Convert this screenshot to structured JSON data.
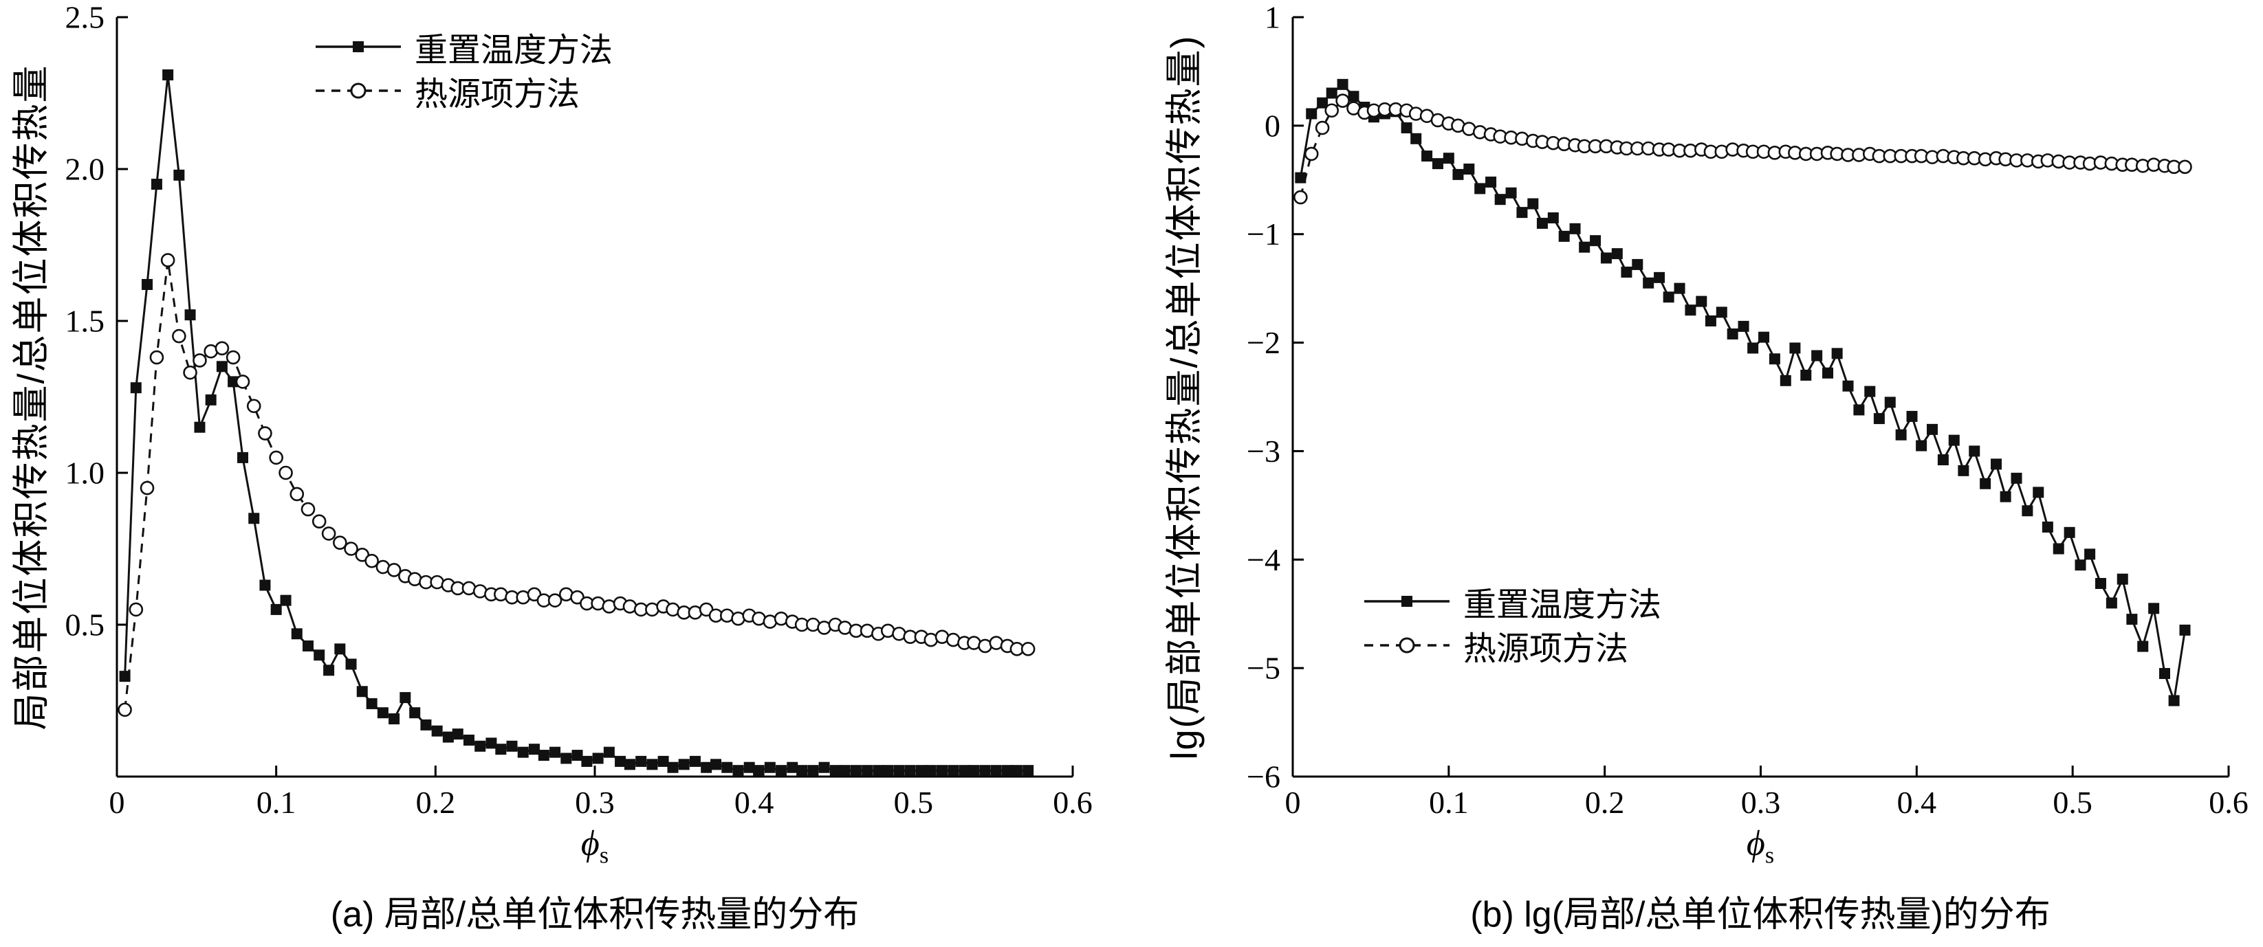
{
  "chart_data": [
    {
      "id": "a",
      "type": "line",
      "caption": "(a) 局部/总单位体积传热量的分布",
      "ylabel": "局部单位体积传热量/总单位体积传热量",
      "xlabel": "ϕ",
      "xlabel_sub": "s",
      "xlim": [
        0,
        0.6
      ],
      "ylim": [
        0,
        2.5
      ],
      "grid": false,
      "legend_position": "top-right-inside",
      "xticks": {
        "values": [
          0,
          0.1,
          0.2,
          0.3,
          0.4,
          0.5,
          0.6
        ],
        "labels": [
          "0",
          "0.1",
          "0.2",
          "0.3",
          "0.4",
          "0.5",
          "0.6"
        ]
      },
      "yticks": {
        "values": [
          0.5,
          1.0,
          1.5,
          2.0,
          2.5
        ],
        "labels": [
          "0.5",
          "1.0",
          "1.5",
          "2.0",
          "2.5"
        ]
      },
      "x": [
        0.005,
        0.012,
        0.019,
        0.025,
        0.032,
        0.039,
        0.046,
        0.052,
        0.059,
        0.066,
        0.073,
        0.079,
        0.086,
        0.093,
        0.1,
        0.106,
        0.113,
        0.12,
        0.127,
        0.133,
        0.14,
        0.147,
        0.154,
        0.16,
        0.167,
        0.174,
        0.181,
        0.187,
        0.194,
        0.201,
        0.208,
        0.214,
        0.221,
        0.228,
        0.235,
        0.241,
        0.248,
        0.255,
        0.262,
        0.268,
        0.275,
        0.282,
        0.289,
        0.295,
        0.302,
        0.309,
        0.316,
        0.322,
        0.329,
        0.336,
        0.343,
        0.349,
        0.356,
        0.363,
        0.37,
        0.376,
        0.383,
        0.39,
        0.397,
        0.403,
        0.41,
        0.417,
        0.424,
        0.43,
        0.437,
        0.444,
        0.451,
        0.457,
        0.464,
        0.471,
        0.478,
        0.484,
        0.491,
        0.498,
        0.505,
        0.511,
        0.518,
        0.525,
        0.532,
        0.538,
        0.545,
        0.552,
        0.559,
        0.565,
        0.572
      ],
      "series": [
        {
          "name": "重置温度方法",
          "marker": "square",
          "line": "solid",
          "color": "#111111",
          "values": [
            0.33,
            1.28,
            1.62,
            1.95,
            2.31,
            1.98,
            1.52,
            1.15,
            1.24,
            1.35,
            1.3,
            1.05,
            0.85,
            0.63,
            0.55,
            0.58,
            0.47,
            0.43,
            0.4,
            0.35,
            0.42,
            0.37,
            0.28,
            0.24,
            0.21,
            0.19,
            0.26,
            0.21,
            0.17,
            0.15,
            0.13,
            0.14,
            0.12,
            0.1,
            0.11,
            0.09,
            0.1,
            0.08,
            0.09,
            0.07,
            0.08,
            0.06,
            0.07,
            0.05,
            0.06,
            0.08,
            0.05,
            0.04,
            0.05,
            0.04,
            0.05,
            0.03,
            0.04,
            0.05,
            0.03,
            0.04,
            0.03,
            0.02,
            0.03,
            0.02,
            0.03,
            0.02,
            0.03,
            0.02,
            0.02,
            0.03,
            0.02,
            0.02,
            0.02,
            0.02,
            0.02,
            0.02,
            0.02,
            0.02,
            0.02,
            0.02,
            0.02,
            0.02,
            0.02,
            0.02,
            0.02,
            0.02,
            0.02,
            0.02,
            0.02
          ]
        },
        {
          "name": "热源项方法",
          "marker": "circle",
          "line": "dashed",
          "color": "#111111",
          "values": [
            0.22,
            0.55,
            0.95,
            1.38,
            1.7,
            1.45,
            1.33,
            1.37,
            1.4,
            1.41,
            1.38,
            1.3,
            1.22,
            1.13,
            1.05,
            1.0,
            0.93,
            0.88,
            0.84,
            0.8,
            0.77,
            0.75,
            0.73,
            0.71,
            0.69,
            0.68,
            0.66,
            0.65,
            0.64,
            0.64,
            0.63,
            0.62,
            0.62,
            0.61,
            0.6,
            0.6,
            0.59,
            0.59,
            0.6,
            0.58,
            0.58,
            0.6,
            0.59,
            0.57,
            0.57,
            0.56,
            0.57,
            0.56,
            0.55,
            0.55,
            0.56,
            0.55,
            0.54,
            0.54,
            0.55,
            0.53,
            0.53,
            0.52,
            0.53,
            0.52,
            0.51,
            0.52,
            0.51,
            0.5,
            0.5,
            0.49,
            0.5,
            0.49,
            0.48,
            0.48,
            0.47,
            0.48,
            0.47,
            0.46,
            0.46,
            0.45,
            0.46,
            0.45,
            0.44,
            0.44,
            0.43,
            0.44,
            0.43,
            0.42,
            0.42
          ]
        }
      ]
    },
    {
      "id": "b",
      "type": "line",
      "caption": "(b) lg(局部/总单位体积传热量)的分布",
      "ylabel": "lg(局部单位体积传热量/总单位体积传热量)",
      "xlabel": "ϕ",
      "xlabel_sub": "s",
      "xlim": [
        0,
        0.6
      ],
      "ylim": [
        -6,
        1
      ],
      "grid": false,
      "legend_position": "bottom-left-inside",
      "xticks": {
        "values": [
          0,
          0.1,
          0.2,
          0.3,
          0.4,
          0.5,
          0.6
        ],
        "labels": [
          "0",
          "0.1",
          "0.2",
          "0.3",
          "0.4",
          "0.5",
          "0.6"
        ]
      },
      "yticks": {
        "values": [
          1,
          0,
          -1,
          -2,
          -3,
          -4,
          -5,
          -6
        ],
        "labels": [
          "1",
          "0",
          "−1",
          "−2",
          "−3",
          "−4",
          "−5",
          "−6"
        ]
      },
      "x": [
        0.005,
        0.012,
        0.019,
        0.025,
        0.032,
        0.039,
        0.046,
        0.052,
        0.059,
        0.066,
        0.073,
        0.079,
        0.086,
        0.093,
        0.1,
        0.106,
        0.113,
        0.12,
        0.127,
        0.133,
        0.14,
        0.147,
        0.154,
        0.16,
        0.167,
        0.174,
        0.181,
        0.187,
        0.194,
        0.201,
        0.208,
        0.214,
        0.221,
        0.228,
        0.235,
        0.241,
        0.248,
        0.255,
        0.262,
        0.268,
        0.275,
        0.282,
        0.289,
        0.295,
        0.302,
        0.309,
        0.316,
        0.322,
        0.329,
        0.336,
        0.343,
        0.349,
        0.356,
        0.363,
        0.37,
        0.376,
        0.383,
        0.39,
        0.397,
        0.403,
        0.41,
        0.417,
        0.424,
        0.43,
        0.437,
        0.444,
        0.451,
        0.457,
        0.464,
        0.471,
        0.478,
        0.484,
        0.491,
        0.498,
        0.505,
        0.511,
        0.518,
        0.525,
        0.532,
        0.538,
        0.545,
        0.552,
        0.559,
        0.565,
        0.572
      ],
      "series": [
        {
          "name": "重置温度方法",
          "marker": "square",
          "line": "solid",
          "color": "#111111",
          "values": [
            -0.48,
            0.11,
            0.21,
            0.3,
            0.38,
            0.27,
            0.17,
            0.08,
            0.11,
            0.13,
            -0.02,
            -0.12,
            -0.28,
            -0.35,
            -0.3,
            -0.45,
            -0.4,
            -0.58,
            -0.52,
            -0.68,
            -0.62,
            -0.8,
            -0.72,
            -0.9,
            -0.85,
            -1.02,
            -0.95,
            -1.12,
            -1.06,
            -1.22,
            -1.18,
            -1.35,
            -1.28,
            -1.45,
            -1.4,
            -1.58,
            -1.5,
            -1.7,
            -1.62,
            -1.8,
            -1.72,
            -1.92,
            -1.85,
            -2.05,
            -1.95,
            -2.15,
            -2.35,
            -2.05,
            -2.3,
            -2.12,
            -2.28,
            -2.1,
            -2.4,
            -2.62,
            -2.45,
            -2.7,
            -2.55,
            -2.85,
            -2.68,
            -2.95,
            -2.8,
            -3.08,
            -2.9,
            -3.18,
            -3.0,
            -3.3,
            -3.12,
            -3.42,
            -3.25,
            -3.55,
            -3.38,
            -3.7,
            -3.9,
            -3.75,
            -4.05,
            -3.95,
            -4.22,
            -4.4,
            -4.18,
            -4.55,
            -4.8,
            -4.45,
            -5.05,
            -5.3,
            -4.65
          ]
        },
        {
          "name": "热源项方法",
          "marker": "circle",
          "line": "dashed",
          "color": "#111111",
          "values": [
            -0.66,
            -0.26,
            -0.02,
            0.14,
            0.23,
            0.16,
            0.12,
            0.14,
            0.15,
            0.15,
            0.14,
            0.11,
            0.09,
            0.05,
            0.02,
            0.0,
            -0.03,
            -0.06,
            -0.08,
            -0.1,
            -0.11,
            -0.12,
            -0.14,
            -0.15,
            -0.16,
            -0.17,
            -0.18,
            -0.19,
            -0.19,
            -0.19,
            -0.2,
            -0.21,
            -0.21,
            -0.21,
            -0.22,
            -0.22,
            -0.23,
            -0.23,
            -0.22,
            -0.24,
            -0.24,
            -0.22,
            -0.23,
            -0.24,
            -0.24,
            -0.25,
            -0.24,
            -0.25,
            -0.26,
            -0.26,
            -0.25,
            -0.26,
            -0.27,
            -0.27,
            -0.26,
            -0.28,
            -0.28,
            -0.28,
            -0.28,
            -0.28,
            -0.29,
            -0.28,
            -0.29,
            -0.3,
            -0.3,
            -0.31,
            -0.3,
            -0.31,
            -0.32,
            -0.32,
            -0.33,
            -0.32,
            -0.33,
            -0.34,
            -0.34,
            -0.35,
            -0.34,
            -0.35,
            -0.36,
            -0.36,
            -0.37,
            -0.36,
            -0.37,
            -0.38,
            -0.38
          ]
        }
      ]
    }
  ],
  "style": {
    "axis_color": "#000000",
    "series_color": "#111111",
    "background": "#ffffff"
  }
}
